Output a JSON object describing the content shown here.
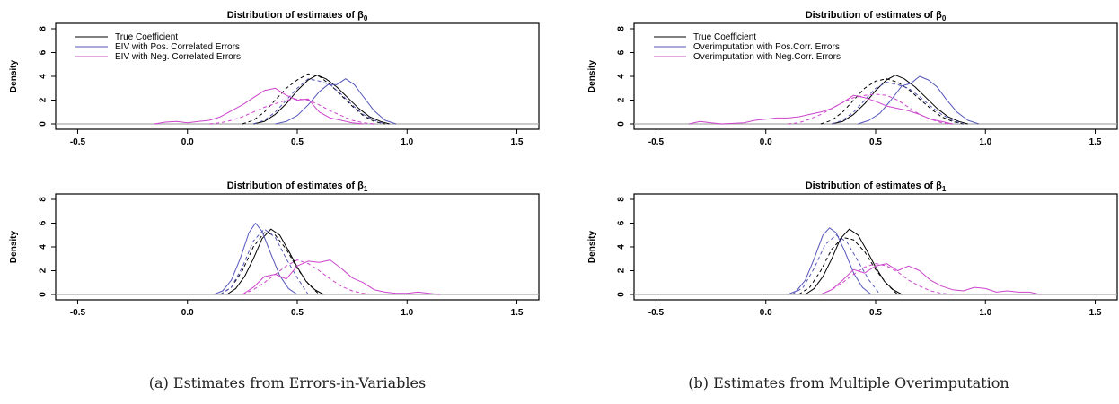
{
  "colors": {
    "true": "#000000",
    "pos": "#5555bb",
    "neg": "#cc44cc",
    "baseline": "#aaaaaa"
  },
  "captions": {
    "left": "(a) Estimates from Errors-in-Variables",
    "right": "(b) Estimates from Multiple Overimputation"
  },
  "chart_data": [
    {
      "type": "line",
      "title": "Distribution of estimates of β",
      "title_sub": "0",
      "ylabel": "Density",
      "xlim": [
        -0.6,
        1.6
      ],
      "ylim": [
        0,
        8
      ],
      "xticks": [
        "-0.5",
        "0.0",
        "0.5",
        "1.0",
        "1.5"
      ],
      "yticks": [
        "0",
        "2",
        "4",
        "6",
        "8"
      ],
      "legend": [
        "True Coefficient",
        "EIV with Pos. Correlated Errors",
        "EIV with Neg. Correlated Errors"
      ],
      "legend_position": "top-left",
      "series": [
        {
          "key": "true",
          "style": "solid",
          "x": [
            0.3,
            0.35,
            0.4,
            0.45,
            0.5,
            0.55,
            0.59,
            0.63,
            0.68,
            0.73,
            0.78,
            0.83,
            0.88,
            0.92
          ],
          "y": [
            0.0,
            0.2,
            0.8,
            1.7,
            2.8,
            3.7,
            4.1,
            3.8,
            3.1,
            2.2,
            1.3,
            0.6,
            0.2,
            0.0
          ]
        },
        {
          "key": "true",
          "style": "dashed",
          "x": [
            0.25,
            0.3,
            0.35,
            0.4,
            0.45,
            0.5,
            0.55,
            0.6,
            0.65,
            0.7,
            0.75,
            0.8,
            0.85,
            0.9
          ],
          "y": [
            0.0,
            0.3,
            1.0,
            2.0,
            3.0,
            3.7,
            4.2,
            4.0,
            3.3,
            2.4,
            1.5,
            0.7,
            0.2,
            0.0
          ]
        },
        {
          "key": "pos",
          "style": "solid",
          "x": [
            0.4,
            0.45,
            0.5,
            0.55,
            0.6,
            0.64,
            0.68,
            0.72,
            0.76,
            0.8,
            0.85,
            0.9,
            0.95
          ],
          "y": [
            0.0,
            0.2,
            0.7,
            1.6,
            2.7,
            3.3,
            3.3,
            3.8,
            3.3,
            2.3,
            1.1,
            0.3,
            0.0
          ]
        },
        {
          "key": "pos",
          "style": "dashed",
          "x": [
            0.3,
            0.35,
            0.4,
            0.45,
            0.5,
            0.55,
            0.6,
            0.65,
            0.7,
            0.75,
            0.8,
            0.85,
            0.9
          ],
          "y": [
            0.0,
            0.3,
            1.0,
            2.0,
            3.0,
            3.8,
            3.6,
            3.3,
            2.5,
            1.6,
            0.8,
            0.3,
            0.0
          ]
        },
        {
          "key": "neg",
          "style": "solid",
          "x": [
            -0.15,
            -0.1,
            -0.05,
            0.0,
            0.05,
            0.1,
            0.15,
            0.2,
            0.25,
            0.3,
            0.35,
            0.4,
            0.45,
            0.5,
            0.55,
            0.6,
            0.65,
            0.7,
            0.75,
            0.8
          ],
          "y": [
            0.0,
            0.15,
            0.2,
            0.1,
            0.2,
            0.3,
            0.6,
            1.1,
            1.6,
            2.2,
            2.8,
            3.0,
            2.4,
            2.0,
            2.1,
            1.0,
            0.5,
            0.3,
            0.1,
            0.0
          ]
        },
        {
          "key": "neg",
          "style": "dashed",
          "x": [
            0.1,
            0.15,
            0.2,
            0.25,
            0.3,
            0.35,
            0.4,
            0.45,
            0.5,
            0.55,
            0.6,
            0.65,
            0.7,
            0.75,
            0.8,
            0.85
          ],
          "y": [
            0.0,
            0.1,
            0.3,
            0.6,
            1.0,
            1.4,
            1.7,
            2.0,
            2.1,
            2.0,
            1.6,
            1.1,
            0.7,
            0.3,
            0.1,
            0.0
          ]
        }
      ]
    },
    {
      "type": "line",
      "title": "Distribution of estimates of β",
      "title_sub": "1",
      "ylabel": "Density",
      "xlim": [
        -0.6,
        1.6
      ],
      "ylim": [
        0,
        8
      ],
      "xticks": [
        "-0.5",
        "0.0",
        "0.5",
        "1.0",
        "1.5"
      ],
      "yticks": [
        "0",
        "2",
        "4",
        "6",
        "8"
      ],
      "legend": [],
      "series": [
        {
          "key": "true",
          "style": "solid",
          "x": [
            0.18,
            0.22,
            0.26,
            0.3,
            0.34,
            0.38,
            0.42,
            0.46,
            0.5,
            0.54,
            0.58,
            0.62
          ],
          "y": [
            0.0,
            0.5,
            1.5,
            3.0,
            4.7,
            5.5,
            5.0,
            3.7,
            2.3,
            1.1,
            0.4,
            0.0
          ]
        },
        {
          "key": "true",
          "style": "dashed",
          "x": [
            0.15,
            0.2,
            0.25,
            0.3,
            0.35,
            0.4,
            0.45,
            0.5,
            0.55,
            0.6
          ],
          "y": [
            0.0,
            0.6,
            2.0,
            4.0,
            5.2,
            5.0,
            3.8,
            2.2,
            0.9,
            0.0
          ]
        },
        {
          "key": "pos",
          "style": "solid",
          "x": [
            0.12,
            0.16,
            0.2,
            0.24,
            0.28,
            0.31,
            0.34,
            0.38,
            0.42,
            0.46,
            0.5
          ],
          "y": [
            0.0,
            0.3,
            1.2,
            3.0,
            5.2,
            6.0,
            5.3,
            3.4,
            1.6,
            0.5,
            0.0
          ]
        },
        {
          "key": "pos",
          "style": "dashed",
          "x": [
            0.15,
            0.2,
            0.25,
            0.3,
            0.35,
            0.4,
            0.45,
            0.5,
            0.55
          ],
          "y": [
            0.0,
            0.6,
            2.3,
            4.5,
            5.5,
            4.8,
            3.0,
            1.4,
            0.0
          ]
        },
        {
          "key": "neg",
          "style": "solid",
          "x": [
            0.25,
            0.3,
            0.35,
            0.4,
            0.45,
            0.5,
            0.55,
            0.6,
            0.65,
            0.7,
            0.75,
            0.8,
            0.85,
            0.9,
            0.95,
            1.0,
            1.05,
            1.1,
            1.15
          ],
          "y": [
            0.0,
            0.6,
            1.5,
            1.7,
            1.3,
            2.4,
            2.8,
            2.7,
            2.9,
            2.2,
            1.4,
            1.0,
            0.4,
            0.2,
            0.1,
            0.1,
            0.2,
            0.1,
            0.0
          ]
        },
        {
          "key": "neg",
          "style": "dashed",
          "x": [
            0.25,
            0.3,
            0.35,
            0.4,
            0.45,
            0.5,
            0.55,
            0.6,
            0.65,
            0.7,
            0.75,
            0.8,
            0.85
          ],
          "y": [
            0.0,
            0.4,
            1.0,
            1.7,
            2.4,
            2.9,
            2.6,
            2.0,
            1.3,
            0.7,
            0.3,
            0.1,
            0.0
          ]
        }
      ]
    },
    {
      "type": "line",
      "title": "Distribution of estimates of β",
      "title_sub": "0",
      "ylabel": "Density",
      "xlim": [
        -0.6,
        1.6
      ],
      "ylim": [
        0,
        8
      ],
      "xticks": [
        "-0.5",
        "0.0",
        "0.5",
        "1.0",
        "1.5"
      ],
      "yticks": [
        "0",
        "2",
        "4",
        "6",
        "8"
      ],
      "legend": [
        "True Coefficient",
        "Overimputation with Pos.Corr. Errors",
        "Overimputation with Neg.Corr. Errors"
      ],
      "legend_position": "top-left",
      "series": [
        {
          "key": "true",
          "style": "solid",
          "x": [
            0.3,
            0.35,
            0.4,
            0.45,
            0.5,
            0.55,
            0.59,
            0.63,
            0.68,
            0.73,
            0.78,
            0.83,
            0.88,
            0.92
          ],
          "y": [
            0.0,
            0.2,
            0.8,
            1.7,
            2.8,
            3.7,
            4.1,
            3.8,
            3.1,
            2.2,
            1.3,
            0.6,
            0.2,
            0.0
          ]
        },
        {
          "key": "true",
          "style": "dashed",
          "x": [
            0.25,
            0.3,
            0.35,
            0.4,
            0.45,
            0.5,
            0.55,
            0.6,
            0.65,
            0.7,
            0.75,
            0.8,
            0.85,
            0.9
          ],
          "y": [
            0.0,
            0.3,
            1.0,
            2.0,
            3.0,
            3.6,
            3.8,
            3.5,
            2.9,
            2.1,
            1.3,
            0.6,
            0.2,
            0.0
          ]
        },
        {
          "key": "pos",
          "style": "solid",
          "x": [
            0.42,
            0.47,
            0.52,
            0.57,
            0.62,
            0.66,
            0.7,
            0.74,
            0.78,
            0.82,
            0.87,
            0.92,
            0.97
          ],
          "y": [
            0.0,
            0.3,
            0.9,
            2.0,
            3.2,
            3.4,
            4.0,
            3.7,
            3.1,
            2.1,
            1.0,
            0.3,
            0.0
          ]
        },
        {
          "key": "pos",
          "style": "dashed",
          "x": [
            0.3,
            0.35,
            0.4,
            0.45,
            0.5,
            0.55,
            0.6,
            0.65,
            0.7,
            0.75,
            0.8,
            0.85,
            0.9
          ],
          "y": [
            0.0,
            0.3,
            1.0,
            2.0,
            3.0,
            3.5,
            3.3,
            3.0,
            2.3,
            1.5,
            0.8,
            0.3,
            0.0
          ]
        },
        {
          "key": "neg",
          "style": "solid",
          "x": [
            -0.35,
            -0.3,
            -0.25,
            -0.2,
            -0.1,
            -0.05,
            0.0,
            0.05,
            0.1,
            0.15,
            0.2,
            0.25,
            0.3,
            0.35,
            0.4,
            0.45,
            0.5,
            0.55,
            0.6,
            0.65,
            0.7,
            0.75,
            0.8,
            0.85
          ],
          "y": [
            0.0,
            0.2,
            0.1,
            0.0,
            0.1,
            0.3,
            0.4,
            0.5,
            0.5,
            0.6,
            0.8,
            1.0,
            1.3,
            1.8,
            2.4,
            2.2,
            1.9,
            1.5,
            1.3,
            1.1,
            0.8,
            0.4,
            0.2,
            0.0
          ]
        },
        {
          "key": "neg",
          "style": "dashed",
          "x": [
            0.1,
            0.15,
            0.2,
            0.25,
            0.3,
            0.35,
            0.4,
            0.45,
            0.5,
            0.55,
            0.6,
            0.65,
            0.7,
            0.75,
            0.8,
            0.85
          ],
          "y": [
            0.0,
            0.1,
            0.4,
            0.8,
            1.3,
            1.8,
            2.2,
            2.4,
            2.5,
            2.4,
            2.0,
            1.4,
            0.8,
            0.4,
            0.1,
            0.0
          ]
        }
      ]
    },
    {
      "type": "line",
      "title": "Distribution of estimates of β",
      "title_sub": "1",
      "ylabel": "Density",
      "xlim": [
        -0.6,
        1.6
      ],
      "ylim": [
        0,
        8
      ],
      "xticks": [
        "-0.5",
        "0.0",
        "0.5",
        "1.0",
        "1.5"
      ],
      "yticks": [
        "0",
        "2",
        "4",
        "6",
        "8"
      ],
      "legend": [],
      "series": [
        {
          "key": "true",
          "style": "solid",
          "x": [
            0.18,
            0.22,
            0.26,
            0.3,
            0.34,
            0.38,
            0.42,
            0.46,
            0.5,
            0.54,
            0.58,
            0.62
          ],
          "y": [
            0.0,
            0.5,
            1.5,
            3.0,
            4.7,
            5.5,
            5.0,
            3.7,
            2.3,
            1.1,
            0.4,
            0.0
          ]
        },
        {
          "key": "true",
          "style": "dashed",
          "x": [
            0.15,
            0.2,
            0.25,
            0.3,
            0.35,
            0.4,
            0.45,
            0.5,
            0.55,
            0.6
          ],
          "y": [
            0.0,
            0.6,
            2.0,
            3.8,
            4.8,
            4.6,
            3.6,
            2.1,
            0.9,
            0.0
          ]
        },
        {
          "key": "pos",
          "style": "solid",
          "x": [
            0.1,
            0.14,
            0.18,
            0.22,
            0.26,
            0.29,
            0.32,
            0.36,
            0.4,
            0.44,
            0.48
          ],
          "y": [
            0.0,
            0.3,
            1.2,
            3.0,
            5.0,
            5.6,
            5.2,
            3.6,
            1.8,
            0.6,
            0.0
          ]
        },
        {
          "key": "pos",
          "style": "dashed",
          "x": [
            0.12,
            0.17,
            0.22,
            0.27,
            0.32,
            0.37,
            0.42,
            0.47,
            0.52
          ],
          "y": [
            0.0,
            0.6,
            2.2,
            4.2,
            5.0,
            4.4,
            2.8,
            1.2,
            0.0
          ]
        },
        {
          "key": "neg",
          "style": "solid",
          "x": [
            0.25,
            0.3,
            0.35,
            0.4,
            0.45,
            0.5,
            0.55,
            0.6,
            0.65,
            0.7,
            0.75,
            0.8,
            0.85,
            0.9,
            0.95,
            1.0,
            1.05,
            1.1,
            1.15,
            1.2,
            1.25
          ],
          "y": [
            0.0,
            0.4,
            1.2,
            2.1,
            1.8,
            2.4,
            2.6,
            2.0,
            2.4,
            2.0,
            1.2,
            0.7,
            0.4,
            0.3,
            0.6,
            0.5,
            0.2,
            0.3,
            0.2,
            0.2,
            0.0
          ]
        },
        {
          "key": "neg",
          "style": "dashed",
          "x": [
            0.25,
            0.3,
            0.35,
            0.4,
            0.45,
            0.5,
            0.55,
            0.6,
            0.65,
            0.7,
            0.75,
            0.8,
            0.85
          ],
          "y": [
            0.0,
            0.4,
            1.0,
            1.7,
            2.3,
            2.6,
            2.4,
            1.9,
            1.2,
            0.7,
            0.3,
            0.1,
            0.0
          ]
        }
      ]
    }
  ]
}
